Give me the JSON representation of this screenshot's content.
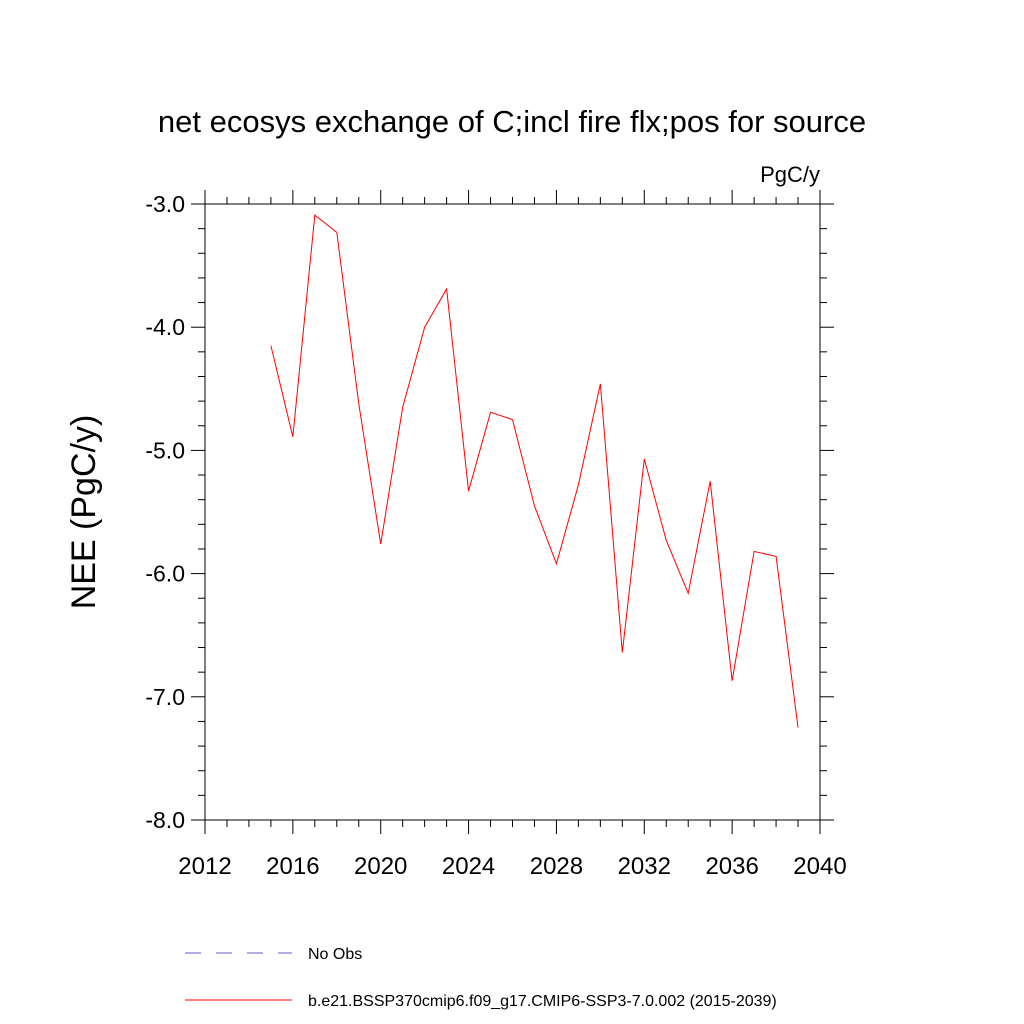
{
  "chart_data": {
    "type": "line",
    "title": "net ecosys exchange of C;incl fire flx;pos for source",
    "units_label": "PgC/y",
    "ylabel": "NEE  (PgC/y)",
    "xlabel": "",
    "xlim": [
      2012,
      2040
    ],
    "ylim": [
      -8.0,
      -3.0
    ],
    "x_ticks": [
      2012,
      2016,
      2020,
      2024,
      2028,
      2032,
      2036,
      2040
    ],
    "x_tick_labels": [
      "2012",
      "2016",
      "2020",
      "2024",
      "2028",
      "2032",
      "2036",
      "2040"
    ],
    "y_ticks": [
      -8.0,
      -7.0,
      -6.0,
      -5.0,
      -4.0,
      -3.0
    ],
    "y_tick_labels": [
      "-8.0",
      "-7.0",
      "-6.0",
      "-5.0",
      "-4.0",
      "-3.0"
    ],
    "grid": false,
    "legend_position": "bottom",
    "series": [
      {
        "name": "b.e21.BSSP370cmip6.f09_g17.CMIP6-SSP3-7.0.002 (2015-2039)",
        "color": "#ff0000",
        "style": "solid",
        "x": [
          2015,
          2016,
          2017,
          2018,
          2019,
          2020,
          2021,
          2022,
          2023,
          2024,
          2025,
          2026,
          2027,
          2028,
          2029,
          2030,
          2031,
          2032,
          2033,
          2034,
          2035,
          2036,
          2037,
          2038,
          2039
        ],
        "y": [
          -4.15,
          -4.89,
          -3.09,
          -3.23,
          -4.62,
          -5.76,
          -4.65,
          -4.0,
          -3.69,
          -5.33,
          -4.69,
          -4.75,
          -5.45,
          -5.92,
          -5.28,
          -4.46,
          -6.64,
          -5.07,
          -5.73,
          -6.16,
          -5.25,
          -6.87,
          -5.82,
          -5.86,
          -7.25
        ]
      },
      {
        "name": "No Obs",
        "color": "#6a5acd",
        "style": "dashed",
        "x": [],
        "y": []
      }
    ]
  }
}
